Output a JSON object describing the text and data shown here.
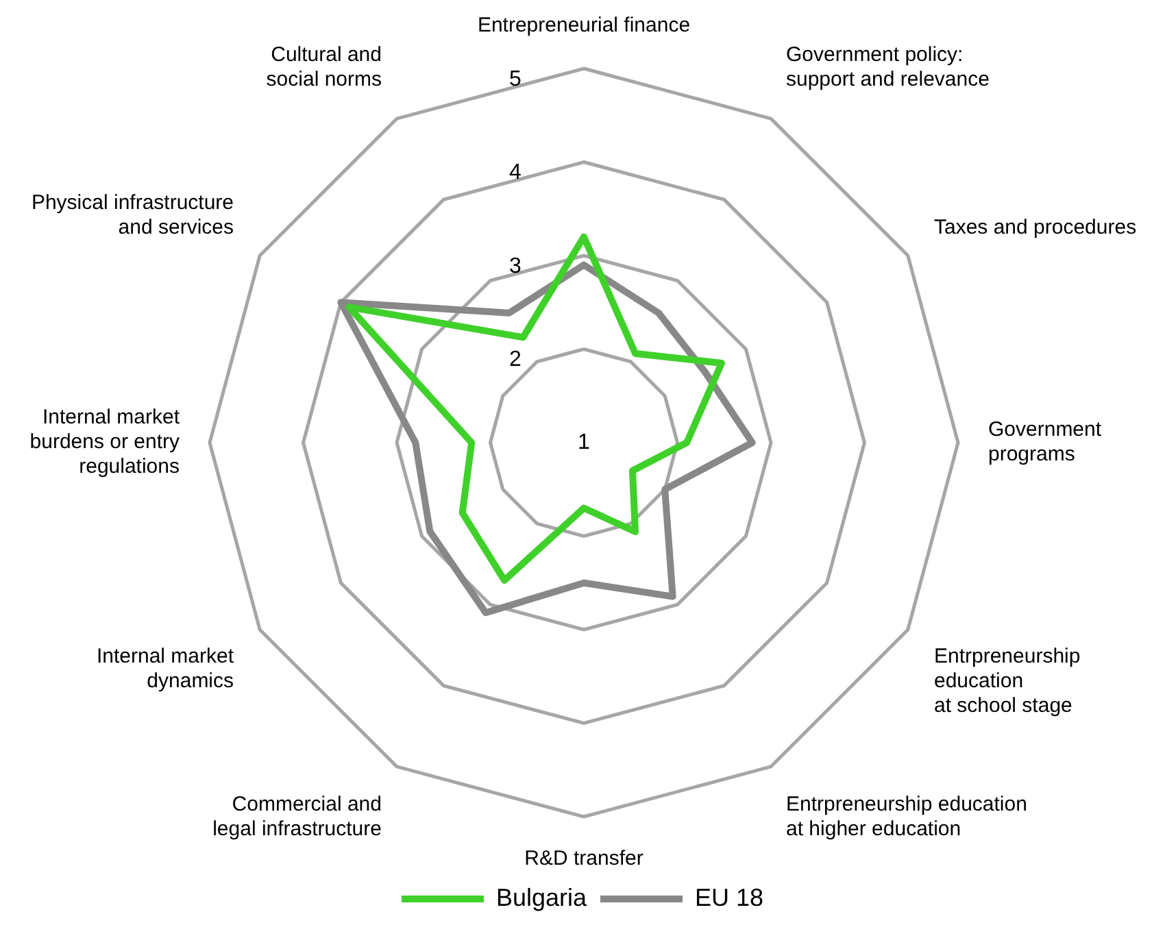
{
  "chart_data": {
    "type": "radar",
    "categories": [
      "Entrepreneurial finance",
      "Government policy:\nsupport and relevance",
      "Taxes and procedures",
      "Government\nprograms",
      "Entrpreneurship\neducation\nat school stage",
      "Entrpreneurship education\nat higher education",
      "R&D transfer",
      "Commercial and\nlegal infrastructure",
      "Internal market\ndynamics",
      "Internal market\nburdens or entry\nregulations",
      "Physical infrastructure\nand services",
      "Cultural and\nsocial norms"
    ],
    "series": [
      {
        "name": "Bulgaria",
        "color": "#3fd12a",
        "values": [
          3.2,
          2.1,
          2.7,
          2.1,
          1.6,
          2.1,
          1.7,
          2.7,
          2.5,
          2.2,
          3.9,
          2.3
        ]
      },
      {
        "name": "EU 18",
        "color": "#888888",
        "values": [
          2.9,
          2.6,
          2.5,
          2.8,
          2.0,
          2.9,
          2.5,
          3.1,
          2.9,
          2.8,
          4.0,
          2.6
        ]
      }
    ],
    "ylim": [
      1,
      5
    ],
    "yticks": [
      1,
      2,
      3,
      4,
      5
    ],
    "grid": true,
    "legend": "bottom",
    "marker": "none",
    "line_style": "solid"
  }
}
